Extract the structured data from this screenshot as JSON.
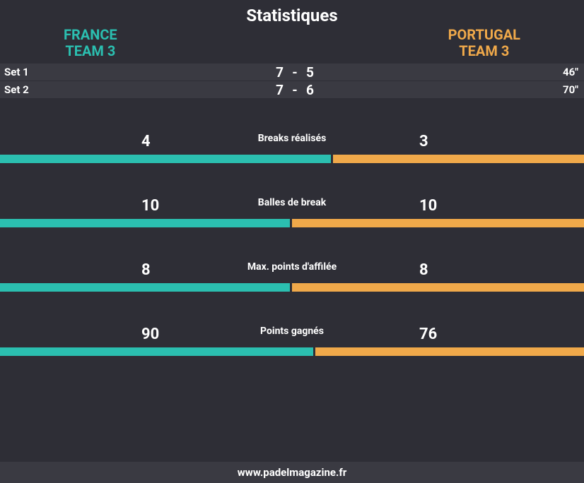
{
  "title": "Statistiques",
  "team1": {
    "name_line1": "FRANCE",
    "name_line2": "TEAM 3",
    "color": "#2bbfb0"
  },
  "team2": {
    "name_line1": "PORTUGAL",
    "name_line2": "TEAM 3",
    "color": "#f0a94a"
  },
  "background_color": "#2e2e36",
  "row_bg_color": "#3a3a42",
  "text_color": "#ffffff",
  "sets": [
    {
      "label": "Set 1",
      "score1": "7",
      "score2": "5",
      "time": "46\""
    },
    {
      "label": "Set 2",
      "score1": "7",
      "score2": "6",
      "time": "70\""
    }
  ],
  "stats": [
    {
      "label": "Breaks réalisés",
      "val1": "4",
      "val2": "3",
      "pct1": 57,
      "pct2": 43
    },
    {
      "label": "Balles de break",
      "val1": "10",
      "val2": "10",
      "pct1": 50,
      "pct2": 50
    },
    {
      "label": "Max. points d'affilée",
      "val1": "8",
      "val2": "8",
      "pct1": 50,
      "pct2": 50
    },
    {
      "label": "Points gagnés",
      "val1": "90",
      "val2": "76",
      "pct1": 54,
      "pct2": 46
    }
  ],
  "footer": "www.padelmagazine.fr"
}
